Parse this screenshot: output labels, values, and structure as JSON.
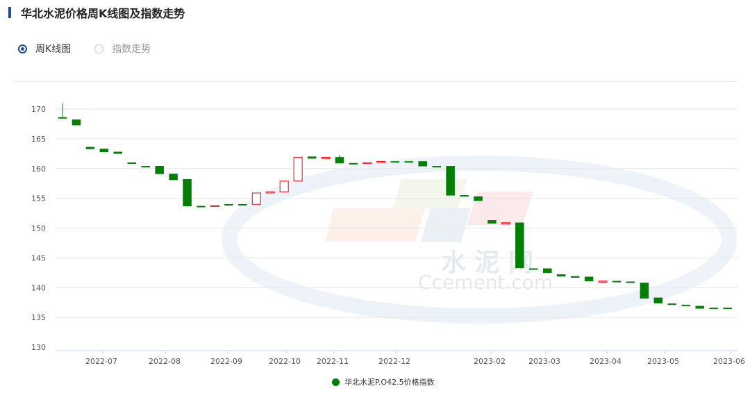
{
  "header": {
    "title": "华北水泥价格周K线图及指数走势"
  },
  "radios": [
    {
      "label": "周K线图",
      "selected": true
    },
    {
      "label": "指数走势",
      "selected": false
    }
  ],
  "watermark": {
    "text_cn": "水 泥 网",
    "text_en": "Ccement.com"
  },
  "chart_data": {
    "type": "candlestick",
    "ylim": [
      130,
      172
    ],
    "yticks": [
      130,
      135,
      140,
      145,
      150,
      155,
      160,
      165,
      170
    ],
    "grid": true,
    "legend_position": "bottom",
    "colors": {
      "up": "#ff0000",
      "down": "#008000"
    },
    "series": [
      {
        "name": "华北水泥P.O42.5价格指数",
        "ohlc": [
          [
            168.6,
            171.0,
            168.6,
            168.6
          ],
          [
            168.2,
            168.2,
            167.3,
            167.3
          ],
          [
            163.6,
            163.6,
            163.3,
            163.3
          ],
          [
            163.3,
            163.3,
            162.8,
            162.8
          ],
          [
            162.8,
            162.8,
            162.5,
            162.5
          ],
          [
            161.0,
            161.0,
            160.9,
            160.9
          ],
          [
            160.4,
            160.4,
            160.4,
            160.4
          ],
          [
            160.4,
            160.4,
            159.1,
            159.1
          ],
          [
            159.1,
            159.1,
            158.1,
            158.1
          ],
          [
            158.2,
            158.2,
            153.7,
            153.7
          ],
          [
            153.7,
            153.7,
            153.7,
            153.7
          ],
          [
            153.7,
            153.8,
            153.7,
            153.8
          ],
          [
            154.0,
            154.0,
            154.0,
            154.0
          ],
          [
            154.0,
            154.0,
            154.0,
            154.0
          ],
          [
            154.0,
            155.9,
            154.0,
            155.9
          ],
          [
            155.9,
            156.1,
            155.9,
            156.1
          ],
          [
            156.1,
            157.9,
            156.1,
            157.9
          ],
          [
            157.9,
            161.9,
            157.9,
            161.9
          ],
          [
            162.0,
            162.0,
            161.7,
            161.7
          ],
          [
            161.7,
            161.9,
            161.7,
            161.9
          ],
          [
            161.9,
            162.3,
            160.9,
            160.9
          ],
          [
            160.9,
            160.9,
            160.9,
            160.9
          ],
          [
            160.9,
            161.0,
            160.9,
            161.0
          ],
          [
            161.1,
            161.2,
            161.1,
            161.2
          ],
          [
            161.2,
            161.2,
            161.2,
            161.2
          ],
          [
            161.2,
            161.2,
            161.2,
            161.2
          ],
          [
            161.2,
            161.2,
            160.4,
            160.4
          ],
          [
            160.4,
            160.4,
            160.4,
            160.4
          ],
          [
            160.4,
            160.4,
            155.5,
            155.5
          ],
          [
            155.5,
            155.5,
            155.5,
            155.5
          ],
          [
            155.3,
            155.3,
            154.6,
            154.6
          ],
          [
            151.3,
            151.3,
            150.8,
            150.8
          ],
          [
            150.8,
            150.9,
            150.8,
            150.9
          ],
          [
            150.9,
            150.9,
            143.3,
            143.3
          ],
          [
            143.2,
            143.2,
            143.2,
            143.2
          ],
          [
            143.2,
            143.2,
            142.5,
            142.5
          ],
          [
            142.2,
            142.2,
            141.9,
            141.9
          ],
          [
            141.9,
            141.9,
            141.7,
            141.7
          ],
          [
            141.8,
            141.8,
            141.1,
            141.1
          ],
          [
            141.0,
            141.1,
            141.0,
            141.1
          ],
          [
            141.1,
            141.1,
            141.0,
            141.0
          ],
          [
            141.0,
            141.0,
            140.9,
            140.9
          ],
          [
            140.8,
            140.8,
            138.2,
            138.2
          ],
          [
            138.3,
            138.3,
            137.4,
            137.4
          ],
          [
            137.3,
            137.3,
            137.3,
            137.3
          ],
          [
            137.1,
            137.1,
            137.1,
            137.1
          ],
          [
            136.9,
            136.9,
            136.5,
            136.5
          ],
          [
            136.6,
            136.6,
            136.6,
            136.6
          ],
          [
            136.6,
            136.6,
            136.6,
            136.6
          ]
        ]
      }
    ],
    "xticks": [
      "2022-07",
      "2022-08",
      "2022-09",
      "2022-10",
      "2022-11",
      "2022-12",
      "2023-02",
      "2023-03",
      "2023-04",
      "2023-05",
      "2023-06"
    ]
  }
}
